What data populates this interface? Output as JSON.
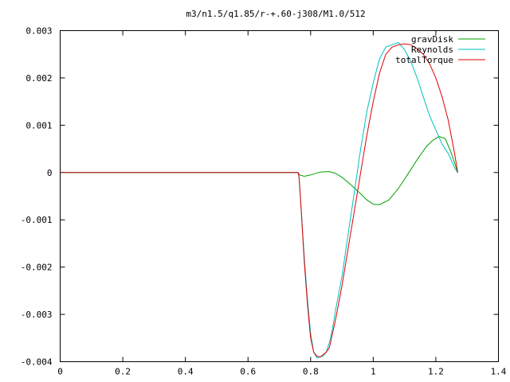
{
  "chart_data": {
    "type": "line",
    "title": "m3/n1.5/q1.85/r-+.60-j308/M1.0/512",
    "xlabel": "",
    "ylabel": "",
    "xlim": [
      0,
      1.4
    ],
    "ylim": [
      -0.004,
      0.003
    ],
    "grid": false,
    "legend_position": "top-right",
    "x_ticks": [
      {
        "value": 0,
        "label": "0"
      },
      {
        "value": 0.2,
        "label": "0.2"
      },
      {
        "value": 0.4,
        "label": "0.4"
      },
      {
        "value": 0.6,
        "label": "0.6"
      },
      {
        "value": 0.8,
        "label": "0.8"
      },
      {
        "value": 1.0,
        "label": "1"
      },
      {
        "value": 1.2,
        "label": "1.2"
      },
      {
        "value": 1.4,
        "label": "1.4"
      }
    ],
    "y_ticks": [
      {
        "value": 0.003,
        "label": "0.003"
      },
      {
        "value": 0.002,
        "label": "0.002"
      },
      {
        "value": 0.001,
        "label": "0.001"
      },
      {
        "value": 0,
        "label": "0"
      },
      {
        "value": -0.001,
        "label": "-0.001"
      },
      {
        "value": -0.002,
        "label": "-0.002"
      },
      {
        "value": -0.003,
        "label": "-0.003"
      },
      {
        "value": -0.004,
        "label": "-0.004"
      }
    ],
    "series": [
      {
        "name": "gravDisk",
        "color": "#00a000",
        "x": [
          0,
          0.76,
          0.765,
          0.78,
          0.8,
          0.83,
          0.86,
          0.88,
          0.9,
          0.93,
          0.96,
          0.98,
          1.0,
          1.02,
          1.05,
          1.08,
          1.11,
          1.14,
          1.17,
          1.19,
          1.21,
          1.23,
          1.25,
          1.27
        ],
        "y": [
          0,
          0,
          -5e-05,
          -8e-05,
          -5e-05,
          1e-05,
          2e-05,
          -2e-05,
          -0.0001,
          -0.00027,
          -0.00045,
          -0.00058,
          -0.00067,
          -0.00068,
          -0.00058,
          -0.00034,
          -4e-05,
          0.00027,
          0.00055,
          0.00068,
          0.00076,
          0.00072,
          0.0004,
          0.0
        ]
      },
      {
        "name": "Reynolds",
        "color": "#00c0c0",
        "x": [
          0,
          0.76,
          0.763,
          0.77,
          0.78,
          0.79,
          0.8,
          0.81,
          0.82,
          0.83,
          0.84,
          0.85,
          0.86,
          0.87,
          0.88,
          0.9,
          0.92,
          0.94,
          0.96,
          0.98,
          1.0,
          1.02,
          1.04,
          1.06,
          1.08,
          1.1,
          1.12,
          1.14,
          1.16,
          1.18,
          1.2,
          1.22,
          1.24,
          1.26,
          1.27
        ],
        "y": [
          0,
          0,
          -0.0001,
          -0.0008,
          -0.0018,
          -0.0027,
          -0.0034,
          -0.0038,
          -0.00392,
          -0.0039,
          -0.00388,
          -0.0038,
          -0.0036,
          -0.0033,
          -0.0029,
          -0.0022,
          -0.0013,
          -0.0004,
          0.0005,
          0.0013,
          0.0019,
          0.0024,
          0.00265,
          0.0027,
          0.00275,
          0.0026,
          0.00235,
          0.002,
          0.0016,
          0.0012,
          0.0009,
          0.0006,
          0.0004,
          0.0001,
          0.0
        ]
      },
      {
        "name": "totalTorque",
        "color": "#e00000",
        "x": [
          0,
          0.76,
          0.763,
          0.77,
          0.78,
          0.79,
          0.8,
          0.81,
          0.82,
          0.83,
          0.84,
          0.85,
          0.86,
          0.87,
          0.88,
          0.9,
          0.92,
          0.94,
          0.96,
          0.98,
          1.0,
          1.02,
          1.04,
          1.06,
          1.08,
          1.1,
          1.12,
          1.14,
          1.16,
          1.18,
          1.2,
          1.22,
          1.24,
          1.26,
          1.27
        ],
        "y": [
          0,
          0,
          -0.0001,
          -0.0008,
          -0.0019,
          -0.0028,
          -0.0035,
          -0.0038,
          -0.00388,
          -0.0039,
          -0.00385,
          -0.0038,
          -0.0037,
          -0.0034,
          -0.0031,
          -0.0024,
          -0.0016,
          -0.0008,
          0.0,
          0.0008,
          0.0015,
          0.0021,
          0.0025,
          0.00265,
          0.0027,
          0.00272,
          0.0027,
          0.00262,
          0.0025,
          0.0023,
          0.002,
          0.0016,
          0.0011,
          0.0004,
          0.0
        ]
      }
    ]
  }
}
